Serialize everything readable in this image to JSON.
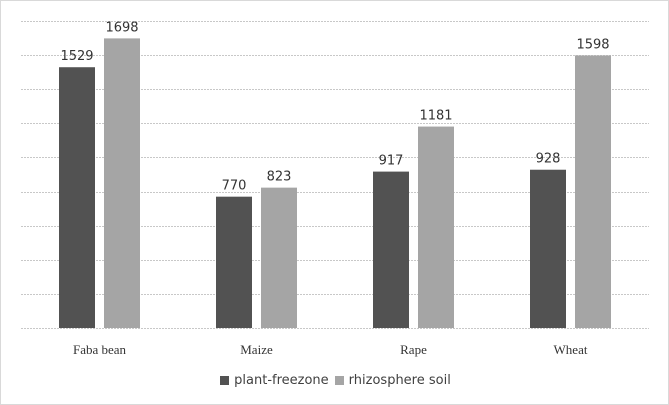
{
  "chart_data": {
    "type": "bar",
    "categories": [
      "Faba bean",
      "Maize",
      "Rape",
      "Wheat"
    ],
    "series": [
      {
        "name": "plant-freezone",
        "values": [
          1529,
          770,
          917,
          928
        ],
        "color": "#525252"
      },
      {
        "name": "rhizosphere soil",
        "values": [
          1698,
          823,
          1181,
          1598
        ],
        "color": "#a5a5a5"
      }
    ],
    "ylim": [
      0,
      1800
    ],
    "grid": true,
    "legend_position": "bottom",
    "title": "",
    "xlabel": "",
    "ylabel": ""
  }
}
